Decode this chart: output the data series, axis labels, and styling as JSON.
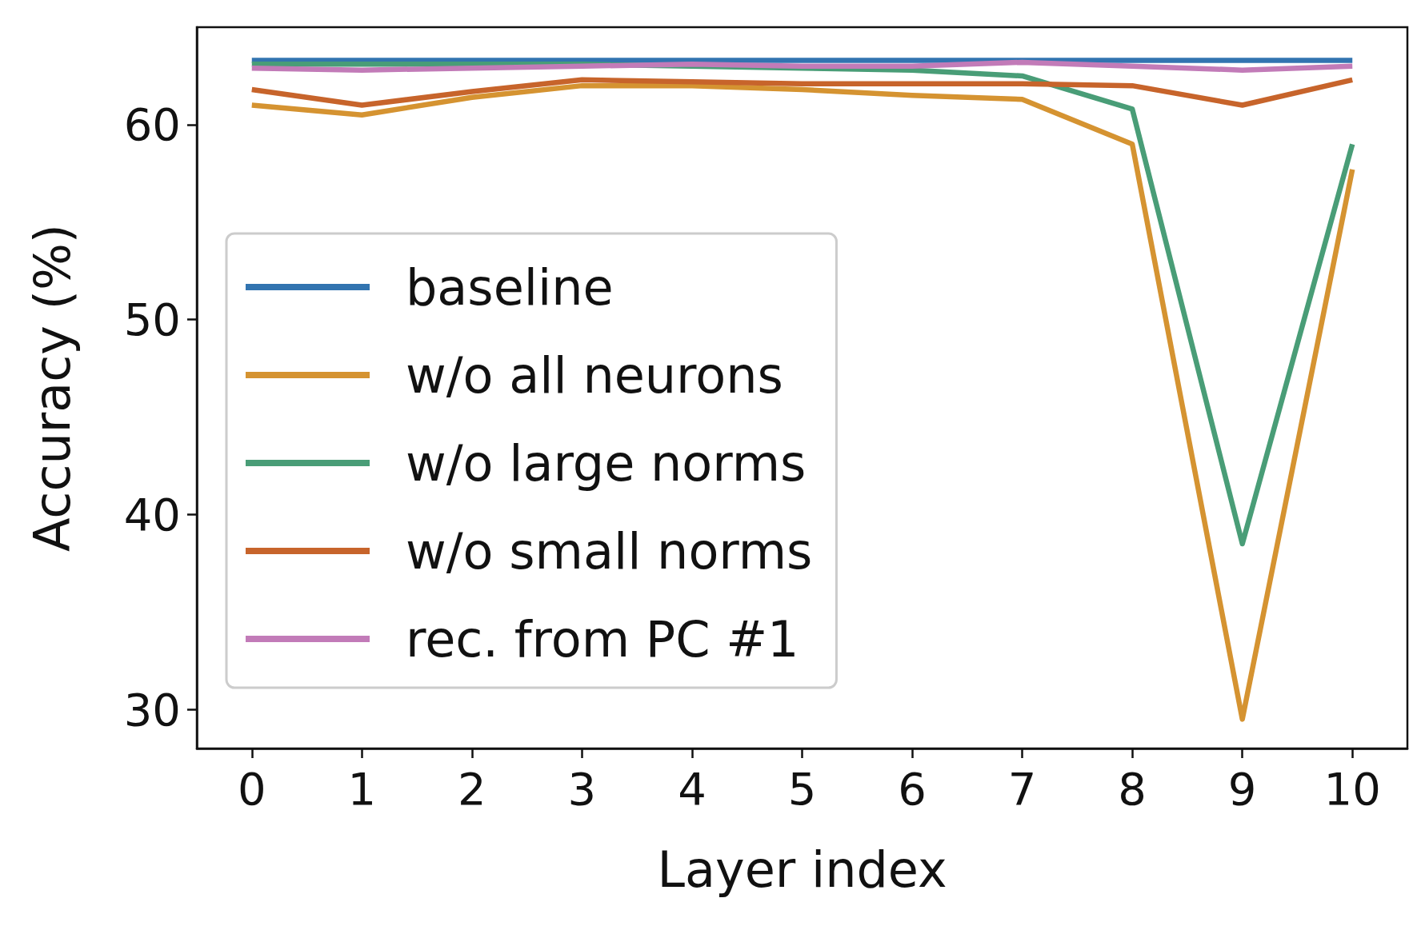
{
  "chart_data": {
    "type": "line",
    "xlabel": "Layer index",
    "ylabel": "Accuracy (%)",
    "x": [
      0,
      1,
      2,
      3,
      4,
      5,
      6,
      7,
      8,
      9,
      10
    ],
    "xlim": [
      -0.5,
      10.5
    ],
    "xticks": [
      0,
      1,
      2,
      3,
      4,
      5,
      6,
      7,
      8,
      9,
      10
    ],
    "ylim": [
      28,
      65
    ],
    "yticks": [
      30,
      40,
      50,
      60
    ],
    "grid": false,
    "legend": "left",
    "marker": "none",
    "line_style": "solid",
    "series": [
      {
        "name": "baseline",
        "color": "#3274b0",
        "values": [
          63.3,
          63.3,
          63.3,
          63.3,
          63.3,
          63.3,
          63.3,
          63.3,
          63.3,
          63.3,
          63.3
        ]
      },
      {
        "name": "w/o all neurons",
        "color": "#d59331",
        "values": [
          61.0,
          60.5,
          61.4,
          62.0,
          62.0,
          61.8,
          61.5,
          61.3,
          59.0,
          29.5,
          57.7
        ]
      },
      {
        "name": "w/o large norms",
        "color": "#499d77",
        "values": [
          63.1,
          63.1,
          63.1,
          63.1,
          63.0,
          62.9,
          62.8,
          62.5,
          60.8,
          38.5,
          59.0
        ]
      },
      {
        "name": "w/o small norms",
        "color": "#c7642b",
        "values": [
          61.8,
          61.0,
          61.7,
          62.3,
          62.2,
          62.1,
          62.1,
          62.1,
          62.0,
          61.0,
          62.3
        ]
      },
      {
        "name": "rec. from PC #1",
        "color": "#c27bb8",
        "values": [
          62.9,
          62.8,
          62.9,
          63.0,
          63.1,
          63.0,
          63.0,
          63.2,
          63.0,
          62.8,
          63.0
        ]
      }
    ]
  }
}
